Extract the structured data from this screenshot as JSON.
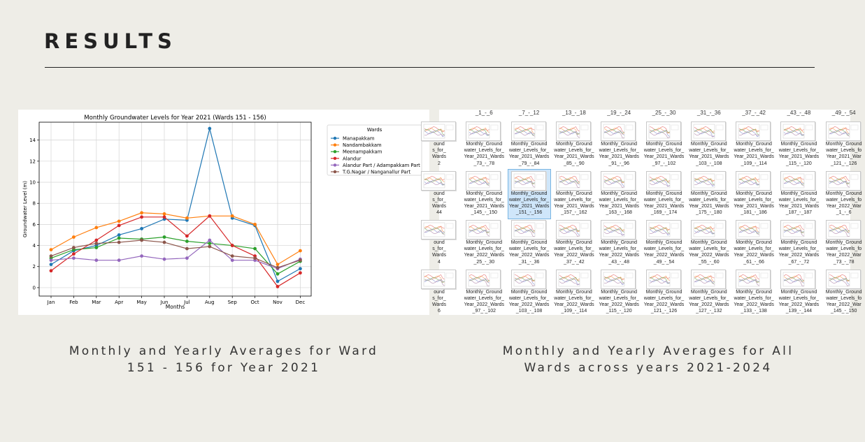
{
  "slide": {
    "title": "RESULTS"
  },
  "captions": {
    "left": [
      "Monthly and Yearly Averages for Ward",
      "151 - 156 for Year 2021"
    ],
    "right": [
      "Monthly and Yearly Averages for All",
      "Wards across years 2021-2024"
    ]
  },
  "chart_data": {
    "type": "line",
    "title": "Monthly Groundwater Levels for Year 2021 (Wards 151 - 156)",
    "xlabel": "Months",
    "ylabel": "Groundwater Level (m)",
    "categories": [
      "Jan",
      "Feb",
      "Mar",
      "Apr",
      "May",
      "Jun",
      "Jul",
      "Aug",
      "Sep",
      "Oct",
      "Nov",
      "Dec"
    ],
    "ylim": [
      -0.8,
      15.7
    ],
    "yticks": [
      0,
      2,
      4,
      6,
      8,
      10,
      12,
      14
    ],
    "grid": true,
    "legend_title": "Wards",
    "legend_position": "outside-right",
    "series": [
      {
        "name": "Manapakkam",
        "color": "#1f77b4",
        "values": [
          2.2,
          3.5,
          4.0,
          5.0,
          5.6,
          6.5,
          6.4,
          15.1,
          6.6,
          5.9,
          0.6,
          1.8
        ]
      },
      {
        "name": "Nandambakkam",
        "color": "#ff7f0e",
        "values": [
          3.6,
          4.8,
          5.7,
          6.3,
          7.1,
          7.0,
          6.6,
          6.8,
          6.8,
          6.0,
          2.2,
          3.5
        ]
      },
      {
        "name": "Meenampakkam",
        "color": "#2ca02c",
        "values": [
          2.8,
          3.6,
          3.8,
          4.7,
          4.6,
          4.8,
          4.4,
          4.2,
          4.0,
          3.7,
          1.3,
          2.5
        ]
      },
      {
        "name": "Alandur",
        "color": "#d62728",
        "values": [
          1.6,
          3.2,
          4.5,
          5.9,
          6.7,
          6.7,
          4.9,
          6.8,
          4.0,
          3.0,
          0.1,
          1.4
        ]
      },
      {
        "name": "Alandur Part / Adampakkam Part",
        "color": "#9467bd",
        "values": [
          2.6,
          2.8,
          2.6,
          2.6,
          3.0,
          2.7,
          2.8,
          4.5,
          2.6,
          2.6,
          1.8,
          2.7
        ]
      },
      {
        "name": "T.G.Nagar / Nanganallur Part",
        "color": "#8c564b",
        "values": [
          3.0,
          3.8,
          4.2,
          4.3,
          4.5,
          4.3,
          3.7,
          3.9,
          3.0,
          2.8,
          1.9,
          2.6
        ]
      }
    ]
  },
  "explorer": {
    "top_labels": [
      "_1_-_6",
      "_7_-_12",
      "_13_-_18",
      "_19_-_24",
      "_25_-_30",
      "_31_-_36",
      "_37_-_42",
      "_43_-_48",
      "_49_-_54"
    ],
    "rows": [
      [
        {
          "l1": "ound",
          "l2": "s_for_",
          "l3": "Wards",
          "l4": "2"
        },
        {
          "l1": "Monthly_Ground",
          "l2": "water_Levels_for_",
          "l3": "Year_2021_Wards",
          "l4": "_73_-_78"
        },
        {
          "l1": "Monthly_Ground",
          "l2": "water_Levels_for_",
          "l3": "Year_2021_Wards",
          "l4": "_79_-_84"
        },
        {
          "l1": "Monthly_Ground",
          "l2": "water_Levels_for_",
          "l3": "Year_2021_Wards",
          "l4": "_85_-_90"
        },
        {
          "l1": "Monthly_Ground",
          "l2": "water_Levels_for_",
          "l3": "Year_2021_Wards",
          "l4": "_91_-_96"
        },
        {
          "l1": "Monthly_Ground",
          "l2": "water_Levels_for_",
          "l3": "Year_2021_Wards",
          "l4": "_97_-_102"
        },
        {
          "l1": "Monthly_Ground",
          "l2": "water_Levels_for_",
          "l3": "Year_2021_Wards",
          "l4": "_103_-_108"
        },
        {
          "l1": "Monthly_Ground",
          "l2": "water_Levels_for_",
          "l3": "Year_2021_Wards",
          "l4": "_109_-_114"
        },
        {
          "l1": "Monthly_Ground",
          "l2": "water_Levels_for_",
          "l3": "Year_2021_Wards",
          "l4": "_115_-_120"
        },
        {
          "l1": "Monthly_Ground",
          "l2": "water_Levels_fo",
          "l3": "Year_2021_War",
          "l4": "_121_-_126"
        }
      ],
      [
        {
          "l1": "ound",
          "l2": "s_for_",
          "l3": "Wards",
          "l4": "44"
        },
        {
          "l1": "Monthly_Ground",
          "l2": "water_Levels_for_",
          "l3": "Year_2021_Wards",
          "l4": "_145_-_150"
        },
        {
          "l1": "Monthly_Ground",
          "l2": "water_Levels_for_",
          "l3": "Year_2021_Wards",
          "l4": "_151_-_156",
          "selected": true
        },
        {
          "l1": "Monthly_Ground",
          "l2": "water_Levels_for_",
          "l3": "Year_2021_Wards",
          "l4": "_157_-_162"
        },
        {
          "l1": "Monthly_Ground",
          "l2": "water_Levels_for_",
          "l3": "Year_2021_Wards",
          "l4": "_163_-_168"
        },
        {
          "l1": "Monthly_Ground",
          "l2": "water_Levels_for_",
          "l3": "Year_2021_Wards",
          "l4": "_169_-_174"
        },
        {
          "l1": "Monthly_Ground",
          "l2": "water_Levels_for_",
          "l3": "Year_2021_Wards",
          "l4": "_175_-_180"
        },
        {
          "l1": "Monthly_Ground",
          "l2": "water_Levels_for_",
          "l3": "Year_2021_Wards",
          "l4": "_181_-_186"
        },
        {
          "l1": "Monthly_Ground",
          "l2": "water_Levels_for_",
          "l3": "Year_2021_Wards",
          "l4": "_187_-_187"
        },
        {
          "l1": "Monthly_Ground",
          "l2": "water_Levels_fo",
          "l3": "Year_2022_War",
          "l4": "_1_-_6"
        }
      ],
      [
        {
          "l1": "ound",
          "l2": "s_for_",
          "l3": "Wards",
          "l4": "4"
        },
        {
          "l1": "Monthly_Ground",
          "l2": "water_Levels_for_",
          "l3": "Year_2022_Wards",
          "l4": "_25_-_30"
        },
        {
          "l1": "Monthly_Ground",
          "l2": "water_Levels_for_",
          "l3": "Year_2022_Wards",
          "l4": "_31_-_36"
        },
        {
          "l1": "Monthly_Ground",
          "l2": "water_Levels_for_",
          "l3": "Year_2022_Wards",
          "l4": "_37_-_42"
        },
        {
          "l1": "Monthly_Ground",
          "l2": "water_Levels_for_",
          "l3": "Year_2022_Wards",
          "l4": "_43_-_48"
        },
        {
          "l1": "Monthly_Ground",
          "l2": "water_Levels_for_",
          "l3": "Year_2022_Wards",
          "l4": "_49_-_54"
        },
        {
          "l1": "Monthly_Ground",
          "l2": "water_Levels_for_",
          "l3": "Year_2022_Wards",
          "l4": "_55_-_60"
        },
        {
          "l1": "Monthly_Ground",
          "l2": "water_Levels_for_",
          "l3": "Year_2022_Wards",
          "l4": "_61_-_66"
        },
        {
          "l1": "Monthly_Ground",
          "l2": "water_Levels_for_",
          "l3": "Year_2022_Wards",
          "l4": "_67_-_72"
        },
        {
          "l1": "Monthly_Ground",
          "l2": "water_Levels_fo",
          "l3": "Year_2022_War",
          "l4": "_73_-_78"
        }
      ],
      [
        {
          "l1": "ound",
          "l2": "s_for_",
          "l3": "Wards",
          "l4": "6"
        },
        {
          "l1": "Monthly_Ground",
          "l2": "water_Levels_for_",
          "l3": "Year_2022_Wards",
          "l4": "_97_-_102"
        },
        {
          "l1": "Monthly_Ground",
          "l2": "water_Levels_for_",
          "l3": "Year_2022_Wards",
          "l4": "_103_-_108"
        },
        {
          "l1": "Monthly_Ground",
          "l2": "water_Levels_for_",
          "l3": "Year_2022_Wards",
          "l4": "_109_-_114"
        },
        {
          "l1": "Monthly_Ground",
          "l2": "water_Levels_for_",
          "l3": "Year_2022_Wards",
          "l4": "_115_-_120"
        },
        {
          "l1": "Monthly_Ground",
          "l2": "water_Levels_for_",
          "l3": "Year_2022_Wards",
          "l4": "_121_-_126"
        },
        {
          "l1": "Monthly_Ground",
          "l2": "water_Levels_for_",
          "l3": "Year_2022_Wards",
          "l4": "_127_-_132"
        },
        {
          "l1": "Monthly_Ground",
          "l2": "water_Levels_for_",
          "l3": "Year_2022_Wards",
          "l4": "_133_-_138"
        },
        {
          "l1": "Monthly_Ground",
          "l2": "water_Levels_for_",
          "l3": "Year_2022_Wards",
          "l4": "_139_-_144"
        },
        {
          "l1": "Monthly_Ground",
          "l2": "water_Levels_fo",
          "l3": "Year_2022_War",
          "l4": "_145_-_150"
        }
      ]
    ]
  }
}
